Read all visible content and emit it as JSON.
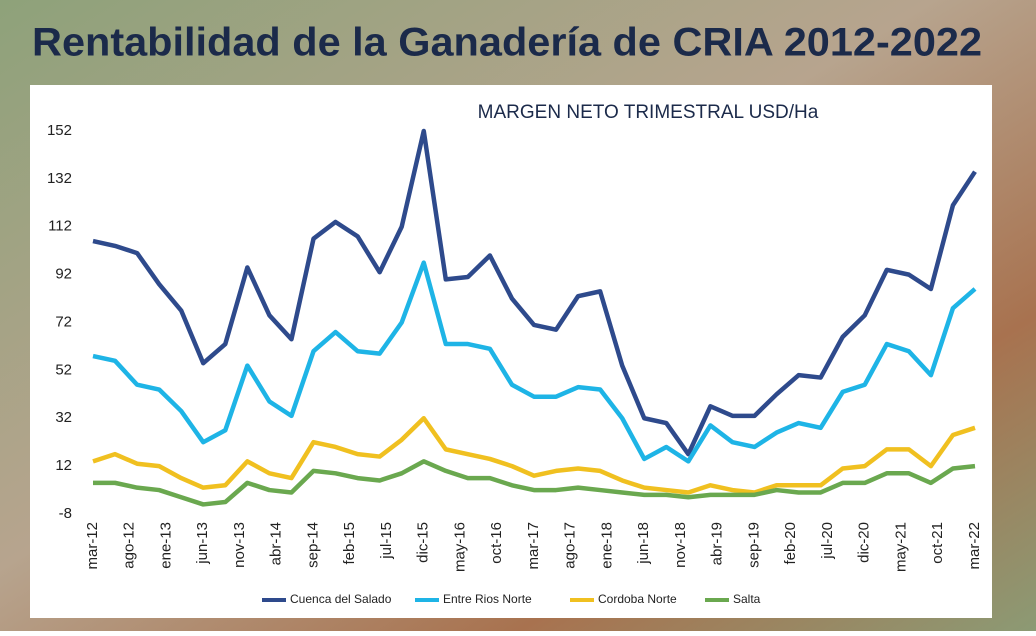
{
  "chart_data": {
    "type": "line",
    "title": "Rentabilidad de la Ganadería de CRIA 2012-2022",
    "subtitle": "MARGEN NETO TRIMESTRAL USD/Ha",
    "x": [
      "2012-03",
      "2012-06",
      "2012-09",
      "2012-12",
      "2013-03",
      "2013-06",
      "2013-09",
      "2013-12",
      "2014-03",
      "2014-06",
      "2014-09",
      "2014-12",
      "2015-03",
      "2015-06",
      "2015-09",
      "2015-12",
      "2016-03",
      "2016-06",
      "2016-09",
      "2016-12",
      "2017-03",
      "2017-06",
      "2017-09",
      "2017-12",
      "2018-03",
      "2018-06",
      "2018-09",
      "2018-12",
      "2019-03",
      "2019-06",
      "2019-09",
      "2019-12",
      "2020-03",
      "2020-06",
      "2020-09",
      "2020-12",
      "2021-03",
      "2021-06",
      "2021-09",
      "2021-12",
      "2022-03"
    ],
    "xticks": [
      {
        "value": "2012-03",
        "label": "mar-12"
      },
      {
        "value": "2012-08",
        "label": "ago-12"
      },
      {
        "value": "2013-01",
        "label": "ene-13"
      },
      {
        "value": "2013-06",
        "label": "jun-13"
      },
      {
        "value": "2013-11",
        "label": "nov-13"
      },
      {
        "value": "2014-04",
        "label": "abr-14"
      },
      {
        "value": "2014-09",
        "label": "sep-14"
      },
      {
        "value": "2015-02",
        "label": "feb-15"
      },
      {
        "value": "2015-07",
        "label": "jul-15"
      },
      {
        "value": "2015-12",
        "label": "dic-15"
      },
      {
        "value": "2016-05",
        "label": "may-16"
      },
      {
        "value": "2016-10",
        "label": "oct-16"
      },
      {
        "value": "2017-03",
        "label": "mar-17"
      },
      {
        "value": "2017-08",
        "label": "ago-17"
      },
      {
        "value": "2018-01",
        "label": "ene-18"
      },
      {
        "value": "2018-06",
        "label": "jun-18"
      },
      {
        "value": "2018-11",
        "label": "nov-18"
      },
      {
        "value": "2019-04",
        "label": "abr-19"
      },
      {
        "value": "2019-09",
        "label": "sep-19"
      },
      {
        "value": "2020-02",
        "label": "feb-20"
      },
      {
        "value": "2020-07",
        "label": "jul-20"
      },
      {
        "value": "2020-12",
        "label": "dic-20"
      },
      {
        "value": "2021-05",
        "label": "may-21"
      },
      {
        "value": "2021-10",
        "label": "oct-21"
      },
      {
        "value": "2022-03",
        "label": "mar-22"
      }
    ],
    "ylim": [
      -8,
      160
    ],
    "yticks": [
      -8,
      12,
      32,
      52,
      72,
      92,
      112,
      132,
      152
    ],
    "grid": false,
    "legend": "bottom",
    "series": [
      {
        "name": "Cuenca del Salado",
        "color": "#2e4a8c",
        "values": [
          106,
          104,
          101,
          88,
          77,
          55,
          63,
          95,
          75,
          65,
          107,
          114,
          108,
          93,
          112,
          152,
          90,
          91,
          100,
          82,
          71,
          69,
          83,
          85,
          54,
          32,
          30,
          17,
          37,
          33,
          33,
          42,
          50,
          49,
          66,
          75,
          94,
          92,
          86,
          121,
          135
        ]
      },
      {
        "name": "Entre Rios Norte",
        "color": "#1eb4e6",
        "values": [
          58,
          56,
          46,
          44,
          35,
          22,
          27,
          54,
          39,
          33,
          60,
          68,
          60,
          59,
          72,
          97,
          63,
          63,
          61,
          46,
          41,
          41,
          45,
          44,
          32,
          15,
          20,
          14,
          29,
          22,
          20,
          26,
          30,
          28,
          43,
          46,
          63,
          60,
          50,
          78,
          86
        ]
      },
      {
        "name": "Cordoba Norte",
        "color": "#f0c020",
        "values": [
          14,
          17,
          13,
          12,
          7,
          3,
          4,
          14,
          9,
          7,
          22,
          20,
          17,
          16,
          23,
          32,
          19,
          17,
          15,
          12,
          8,
          10,
          11,
          10,
          6,
          3,
          2,
          1,
          4,
          2,
          1,
          4,
          4,
          4,
          11,
          12,
          19,
          19,
          12,
          25,
          28
        ]
      },
      {
        "name": "Salta",
        "color": "#6aa84f",
        "values": [
          5,
          5,
          3,
          2,
          -1,
          -4,
          -3,
          5,
          2,
          1,
          10,
          9,
          7,
          6,
          9,
          14,
          10,
          7,
          7,
          4,
          2,
          2,
          3,
          2,
          1,
          0,
          0,
          -1,
          0,
          0,
          0,
          2,
          1,
          1,
          5,
          5,
          9,
          9,
          5,
          11,
          12
        ]
      }
    ]
  }
}
